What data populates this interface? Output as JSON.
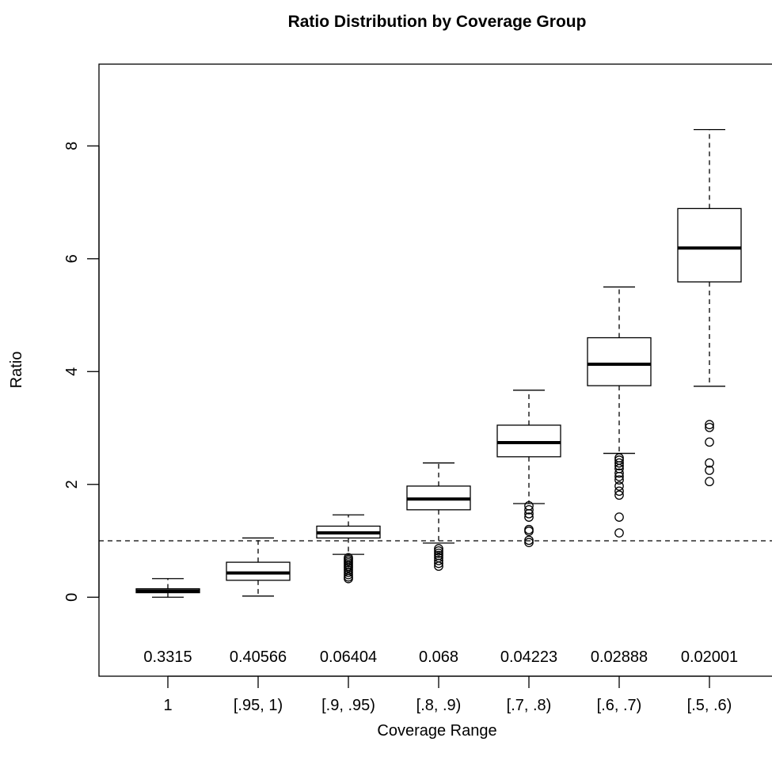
{
  "chart_data": {
    "type": "box",
    "title": "Ratio Distribution by Coverage Group",
    "xlabel": "Coverage Range",
    "ylabel": "Ratio",
    "ylim": [
      -1.4,
      9.45
    ],
    "yticks": [
      0,
      2,
      4,
      6,
      8
    ],
    "yticks_labels": [
      "0",
      "2",
      "4",
      "6",
      "8"
    ],
    "reference_line": {
      "y": 1,
      "style": "dashed"
    },
    "categories": [
      "1",
      "[.95, 1)",
      "[.9, .95)",
      "[.8, .9)",
      "[.7, .8)",
      "[.6, .7)",
      "[.5, .6)"
    ],
    "group_labels": [
      "0.3315",
      "0.40566",
      "0.06404",
      "0.068",
      "0.04223",
      "0.02888",
      "0.02001"
    ],
    "boxes": [
      {
        "whisker_low": 0.0,
        "q1": 0.08,
        "median": 0.11,
        "q3": 0.15,
        "whisker_high": 0.33,
        "outliers": []
      },
      {
        "whisker_low": 0.02,
        "q1": 0.3,
        "median": 0.43,
        "q3": 0.62,
        "whisker_high": 1.05,
        "outliers": []
      },
      {
        "whisker_low": 0.76,
        "q1": 1.05,
        "median": 1.14,
        "q3": 1.26,
        "whisker_high": 1.46,
        "outliers": [
          0.7,
          0.67,
          0.64,
          0.61,
          0.58,
          0.55,
          0.52,
          0.48,
          0.44,
          0.4,
          0.36,
          0.33
        ]
      },
      {
        "whisker_low": 0.96,
        "q1": 1.55,
        "median": 1.74,
        "q3": 1.97,
        "whisker_high": 2.38,
        "outliers": [
          0.86,
          0.82,
          0.78,
          0.74,
          0.7,
          0.65,
          0.6,
          0.55
        ]
      },
      {
        "whisker_low": 1.66,
        "q1": 2.49,
        "median": 2.74,
        "q3": 3.05,
        "whisker_high": 3.67,
        "outliers": [
          1.62,
          1.55,
          1.48,
          1.42,
          1.2,
          1.17,
          1.01,
          0.97
        ]
      },
      {
        "whisker_low": 2.55,
        "q1": 3.75,
        "median": 4.13,
        "q3": 4.6,
        "whisker_high": 5.5,
        "outliers": [
          2.47,
          2.43,
          2.38,
          2.33,
          2.28,
          2.2,
          2.14,
          2.08,
          1.97,
          1.88,
          1.81,
          1.42,
          1.14
        ]
      },
      {
        "whisker_low": 3.74,
        "q1": 5.59,
        "median": 6.19,
        "q3": 6.89,
        "whisker_high": 8.29,
        "outliers": [
          3.06,
          3.01,
          2.75,
          2.38,
          2.25,
          2.05
        ]
      }
    ],
    "grid": false,
    "legend": "none"
  }
}
